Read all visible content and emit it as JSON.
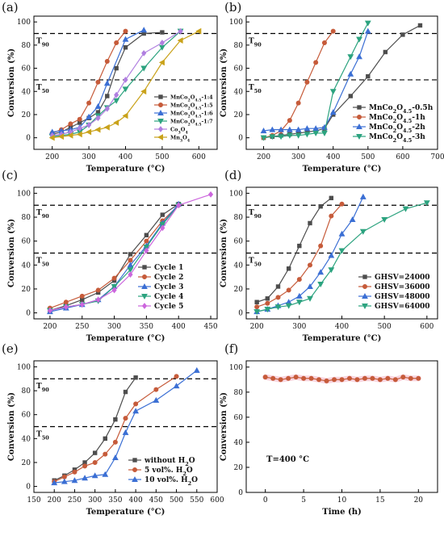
{
  "chart_data": [
    {
      "panel_label": "(a)",
      "type": "line",
      "xlabel": "Temperature (°C)",
      "ylabel": "Conversion (%)",
      "xlim": [
        150,
        650
      ],
      "ylim": [
        -10,
        105
      ],
      "xticks": [
        200,
        300,
        400,
        500,
        600
      ],
      "yticks": [
        0,
        20,
        40,
        60,
        80,
        100
      ],
      "ref_lines": [
        {
          "y": 90,
          "label": "T90"
        },
        {
          "y": 50,
          "label": "T50"
        }
      ],
      "legend_position": "bottom-right",
      "series": [
        {
          "name": "MnCo2O4.5-1:4",
          "color": "#4d4d4d",
          "marker": "square",
          "x": [
            200,
            225,
            250,
            275,
            300,
            325,
            350,
            375,
            400,
            450,
            500
          ],
          "y": [
            3,
            5,
            9,
            13,
            17,
            22,
            36,
            60,
            78,
            90,
            91
          ]
        },
        {
          "name": "MnCo2O4.5-1:5",
          "color": "#c65b3a",
          "marker": "circle",
          "x": [
            200,
            225,
            250,
            275,
            300,
            325,
            350,
            375,
            400
          ],
          "y": [
            4,
            7,
            12,
            16,
            30,
            48,
            66,
            82,
            92
          ]
        },
        {
          "name": "MnCo2O4.5-1:6",
          "color": "#3b6fd4",
          "marker": "triangle-up",
          "x": [
            200,
            225,
            250,
            275,
            300,
            325,
            350,
            400,
            450
          ],
          "y": [
            5,
            6,
            7,
            9,
            18,
            27,
            47,
            85,
            93
          ]
        },
        {
          "name": "MnCo2O4.5-1:7",
          "color": "#2ca37f",
          "marker": "triangle-down",
          "x": [
            200,
            250,
            275,
            300,
            325,
            350,
            375,
            400,
            450,
            500,
            550
          ],
          "y": [
            1,
            3,
            5,
            11,
            19,
            26,
            32,
            42,
            60,
            78,
            92
          ]
        },
        {
          "name": "Co3O4",
          "color": "#b07fe0",
          "marker": "diamond",
          "x": [
            200,
            225,
            250,
            275,
            300,
            325,
            350,
            375,
            400,
            450,
            500,
            550
          ],
          "y": [
            2,
            3,
            5,
            8,
            11,
            17,
            25,
            37,
            50,
            73,
            82,
            92
          ]
        },
        {
          "name": "Mn3O4",
          "color": "#c9a21a",
          "marker": "triangle-left",
          "x": [
            200,
            225,
            250,
            275,
            300,
            325,
            350,
            375,
            400,
            450,
            500,
            550,
            600
          ],
          "y": [
            0,
            1,
            2,
            3,
            5,
            7,
            9,
            13,
            19,
            40,
            65,
            84,
            92
          ]
        }
      ]
    },
    {
      "panel_label": "(b)",
      "type": "line",
      "xlabel": "Temperature (°C)",
      "ylabel": "Conversion (%)",
      "xlim": [
        150,
        700
      ],
      "ylim": [
        -10,
        105
      ],
      "xticks": [
        200,
        300,
        400,
        500,
        600,
        700
      ],
      "yticks": [
        0,
        20,
        40,
        60,
        80,
        100
      ],
      "ref_lines": [
        {
          "y": 90,
          "label": "T90"
        },
        {
          "y": 50,
          "label": "T50"
        }
      ],
      "legend_position": "bottom-right",
      "series": [
        {
          "name": "MnCo2O4.5-0.5h",
          "color": "#4d4d4d",
          "marker": "square",
          "x": [
            200,
            225,
            250,
            275,
            300,
            325,
            350,
            375,
            400,
            450,
            500,
            550,
            600,
            650
          ],
          "y": [
            0,
            1,
            2,
            3,
            4,
            5,
            6,
            8,
            20,
            36,
            53,
            74,
            89,
            97
          ]
        },
        {
          "name": "MnCo2O4.5-1h",
          "color": "#c65b3a",
          "marker": "circle",
          "x": [
            200,
            225,
            250,
            275,
            300,
            325,
            350,
            375,
            400
          ],
          "y": [
            0,
            2,
            6,
            15,
            30,
            48,
            65,
            82,
            92
          ]
        },
        {
          "name": "MnCo2O4.5-2h",
          "color": "#3b6fd4",
          "marker": "triangle-up",
          "x": [
            200,
            225,
            250,
            275,
            300,
            325,
            350,
            375,
            400,
            450,
            475,
            500
          ],
          "y": [
            6,
            7,
            7,
            7,
            7,
            8,
            8,
            9,
            22,
            55,
            70,
            92
          ]
        },
        {
          "name": "MnCo2O4.5-3h",
          "color": "#2ca37f",
          "marker": "triangle-down",
          "x": [
            200,
            225,
            250,
            275,
            300,
            325,
            350,
            375,
            400,
            450,
            475,
            500
          ],
          "y": [
            0,
            1,
            1,
            2,
            2,
            3,
            4,
            4,
            40,
            70,
            85,
            99
          ]
        }
      ]
    },
    {
      "panel_label": "(c)",
      "type": "line",
      "xlabel": "Temperature (°C)",
      "ylabel": "Conversion (%)",
      "xlim": [
        175,
        460
      ],
      "ylim": [
        -5,
        105
      ],
      "xticks": [
        200,
        250,
        300,
        350,
        400,
        450
      ],
      "yticks": [
        0,
        20,
        40,
        60,
        80,
        100
      ],
      "ref_lines": [
        {
          "y": 90,
          "label": "T90"
        },
        {
          "y": 50,
          "label": "T50"
        }
      ],
      "legend_position": "bottom-right",
      "series": [
        {
          "name": "Cycle 1",
          "color": "#4d4d4d",
          "marker": "square",
          "x": [
            200,
            225,
            250,
            275,
            300,
            325,
            350,
            375,
            400
          ],
          "y": [
            2,
            6,
            11,
            17,
            27,
            49,
            65,
            82,
            91
          ]
        },
        {
          "name": "Cycle 2",
          "color": "#c65b3a",
          "marker": "circle",
          "x": [
            200,
            225,
            250,
            275,
            300,
            325,
            350,
            375,
            400
          ],
          "y": [
            4,
            9,
            14,
            19,
            29,
            44,
            60,
            77,
            90
          ]
        },
        {
          "name": "Cycle 3",
          "color": "#3b6fd4",
          "marker": "triangle-up",
          "x": [
            200,
            225,
            250,
            275,
            300,
            325,
            350,
            375,
            400
          ],
          "y": [
            1,
            4,
            7,
            11,
            22,
            40,
            56,
            75,
            91
          ]
        },
        {
          "name": "Cycle 4",
          "color": "#2ca37f",
          "marker": "triangle-down",
          "x": [
            200,
            225,
            250,
            275,
            300,
            325,
            350,
            375,
            400
          ],
          "y": [
            2,
            5,
            7,
            10,
            22,
            36,
            55,
            74,
            90
          ]
        },
        {
          "name": "Cycle 5",
          "color": "#cc66dd",
          "marker": "diamond",
          "x": [
            200,
            225,
            250,
            275,
            300,
            325,
            350,
            375,
            400,
            450
          ],
          "y": [
            2,
            5,
            7,
            11,
            19,
            32,
            52,
            71,
            90,
            99
          ]
        }
      ]
    },
    {
      "panel_label": "(d)",
      "type": "line",
      "xlabel": "Temperature (°C)",
      "ylabel": "Conversion (%)",
      "xlim": [
        175,
        625
      ],
      "ylim": [
        -5,
        105
      ],
      "xticks": [
        200,
        300,
        400,
        500,
        600
      ],
      "yticks": [
        0,
        20,
        40,
        60,
        80,
        100
      ],
      "ref_lines": [
        {
          "y": 90,
          "label": "T90"
        },
        {
          "y": 50,
          "label": "T50"
        }
      ],
      "legend_position": "bottom-right",
      "series": [
        {
          "name": "GHSV=24000",
          "color": "#4d4d4d",
          "marker": "square",
          "x": [
            200,
            225,
            250,
            275,
            300,
            325,
            350,
            375
          ],
          "y": [
            9,
            12,
            22,
            37,
            56,
            75,
            89,
            96
          ]
        },
        {
          "name": "GHSV=36000",
          "color": "#c65b3a",
          "marker": "circle",
          "x": [
            200,
            225,
            250,
            275,
            300,
            325,
            350,
            375,
            400
          ],
          "y": [
            5,
            8,
            13,
            19,
            28,
            40,
            56,
            81,
            91
          ]
        },
        {
          "name": "GHSV=48000",
          "color": "#3b6fd4",
          "marker": "triangle-up",
          "x": [
            200,
            225,
            250,
            275,
            300,
            325,
            350,
            375,
            400,
            425,
            450
          ],
          "y": [
            1,
            3,
            6,
            9,
            14,
            22,
            34,
            48,
            66,
            78,
            97
          ]
        },
        {
          "name": "GHSV=64000",
          "color": "#2ca37f",
          "marker": "triangle-down",
          "x": [
            200,
            225,
            250,
            275,
            300,
            325,
            350,
            375,
            400,
            450,
            500,
            550,
            600
          ],
          "y": [
            1,
            3,
            5,
            6,
            9,
            12,
            24,
            36,
            52,
            68,
            78,
            87,
            92
          ]
        }
      ]
    },
    {
      "panel_label": "(e)",
      "type": "line",
      "xlabel": "Temperature (°C)",
      "ylabel": "Conversion (%)",
      "xlim": [
        150,
        600
      ],
      "ylim": [
        -5,
        105
      ],
      "xticks": [
        150,
        200,
        250,
        300,
        350,
        400,
        450,
        500,
        550,
        600
      ],
      "yticks": [
        0,
        20,
        40,
        60,
        80,
        100
      ],
      "ref_lines": [
        {
          "y": 90,
          "label": "T90"
        },
        {
          "y": 50,
          "label": "T50"
        }
      ],
      "legend_position": "bottom-right",
      "series": [
        {
          "name": "without H2O",
          "color": "#4d4d4d",
          "marker": "square",
          "x": [
            200,
            225,
            250,
            275,
            300,
            325,
            350,
            375,
            400
          ],
          "y": [
            5,
            9,
            14,
            20,
            28,
            40,
            56,
            79,
            91
          ]
        },
        {
          "name": "5 vol%. H2O",
          "color": "#c65b3a",
          "marker": "circle",
          "x": [
            200,
            225,
            250,
            275,
            300,
            325,
            350,
            375,
            400,
            450,
            500
          ],
          "y": [
            4,
            8,
            12,
            17,
            20,
            27,
            37,
            57,
            69,
            81,
            92
          ]
        },
        {
          "name": "10 vol%. H2O",
          "color": "#3b6fd4",
          "marker": "triangle-up",
          "x": [
            200,
            225,
            250,
            275,
            300,
            325,
            350,
            375,
            400,
            450,
            500,
            550
          ],
          "y": [
            3,
            4,
            5,
            7,
            9,
            10,
            24,
            45,
            63,
            72,
            84,
            97
          ]
        }
      ]
    },
    {
      "panel_label": "(f)",
      "type": "line",
      "xlabel": "Time (h)",
      "ylabel": "Conversion (%)",
      "xlim": [
        -2.5,
        22.5
      ],
      "ylim": [
        0,
        105
      ],
      "xticks": [
        0,
        5,
        10,
        15,
        20
      ],
      "yticks": [
        0,
        20,
        40,
        60,
        80,
        100
      ],
      "annotation": "T=400 °C",
      "series": [
        {
          "name": "",
          "color": "#c65b3a",
          "marker": "circle",
          "band_color": "#f4b8c8",
          "x": [
            0,
            1,
            2,
            3,
            4,
            5,
            6,
            7,
            8,
            9,
            10,
            11,
            12,
            13,
            14,
            15,
            16,
            17,
            18,
            19,
            20
          ],
          "y": [
            92,
            91,
            90,
            91,
            92,
            91,
            91,
            90,
            89,
            90,
            90,
            91,
            90,
            91,
            91,
            90,
            91,
            90,
            92,
            91,
            91
          ]
        }
      ]
    }
  ]
}
